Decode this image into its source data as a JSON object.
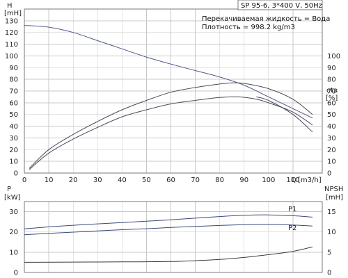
{
  "chart_data": [
    {
      "type": "line",
      "title": "SP 95-6, 3*400 V, 50Hz",
      "annotations": [
        "Перекачиваемая жидкость = Вода",
        "Плотность = 998.2 kg/m3"
      ],
      "left_axis": {
        "title": "H",
        "unit": "[mH]",
        "ylim": [
          0,
          140
        ],
        "ticks": [
          0,
          10,
          20,
          30,
          40,
          50,
          60,
          70,
          80,
          90,
          100,
          110,
          120,
          130
        ]
      },
      "right_axis": {
        "title": "eta",
        "unit": "[%]",
        "ylim": [
          0,
          140
        ],
        "ticks": [
          0,
          10,
          20,
          30,
          40,
          50,
          60,
          70,
          80,
          90,
          100
        ]
      },
      "x_axis": {
        "label": "Q",
        "unit": "[m3/h]",
        "xlim": [
          0,
          122
        ],
        "ticks": [
          0,
          10,
          20,
          30,
          40,
          50,
          60,
          70,
          80,
          90,
          100,
          110
        ]
      },
      "grid": true,
      "series": [
        {
          "axis": "left",
          "color": "#4a5a8a",
          "x": [
            0,
            10,
            20,
            30,
            40,
            50,
            60,
            70,
            80,
            90,
            100,
            110,
            118
          ],
          "y": [
            126,
            124.5,
            120,
            113,
            106,
            99,
            93,
            87.5,
            82,
            75,
            65,
            55,
            47
          ]
        },
        {
          "axis": "right",
          "color": "#4a4a5a",
          "x": [
            2,
            10,
            20,
            30,
            40,
            50,
            60,
            70,
            80,
            85,
            90,
            100,
            110,
            118
          ],
          "y": [
            4,
            20,
            33,
            44,
            54,
            62,
            69,
            73,
            76,
            77,
            76.5,
            72,
            63,
            50
          ]
        },
        {
          "axis": "right",
          "color": "#4a4a5a",
          "x": [
            2,
            10,
            20,
            30,
            40,
            50,
            60,
            70,
            80,
            88,
            95,
            100,
            110,
            118
          ],
          "y": [
            3,
            17,
            29,
            39,
            48,
            54,
            59,
            62,
            64.5,
            65,
            63,
            60,
            52,
            41
          ]
        },
        {
          "axis": "right",
          "color": "#4a4a5a",
          "x": [
            95,
            100,
            110,
            118
          ],
          "y": [
            65,
            62,
            50,
            35
          ]
        }
      ]
    },
    {
      "type": "line",
      "left_axis": {
        "title": "P",
        "unit": "[kW]",
        "ylim": [
          0,
          35
        ],
        "ticks": [
          0,
          10,
          20,
          30
        ]
      },
      "right_axis": {
        "title": "NPSH",
        "unit": "[mH]",
        "ylim": [
          0,
          17.5
        ],
        "ticks": [
          0,
          5,
          10,
          15
        ]
      },
      "x_axis": {
        "xlim": [
          0,
          122
        ]
      },
      "grid": true,
      "series": [
        {
          "name": "P1",
          "axis": "left",
          "color": "#3a4a7a",
          "x": [
            0,
            10,
            20,
            30,
            40,
            50,
            60,
            70,
            80,
            90,
            100,
            110,
            118
          ],
          "y": [
            21.5,
            22.5,
            23.3,
            24.0,
            24.6,
            25.3,
            26.0,
            26.8,
            27.6,
            28.2,
            28.4,
            28.0,
            27.3
          ]
        },
        {
          "name": "P2",
          "axis": "left",
          "color": "#3a4a7a",
          "x": [
            0,
            10,
            20,
            30,
            40,
            50,
            60,
            70,
            80,
            90,
            100,
            110,
            118
          ],
          "y": [
            18.6,
            19.3,
            19.9,
            20.5,
            21.1,
            21.6,
            22.2,
            22.7,
            23.2,
            23.6,
            23.7,
            23.4,
            22.9
          ]
        },
        {
          "axis": "right",
          "color": "#3a3a3a",
          "x": [
            0,
            20,
            40,
            60,
            70,
            80,
            90,
            100,
            110,
            118
          ],
          "y": [
            2.5,
            2.55,
            2.6,
            2.7,
            2.9,
            3.2,
            3.7,
            4.4,
            5.2,
            6.3
          ]
        }
      ]
    }
  ]
}
